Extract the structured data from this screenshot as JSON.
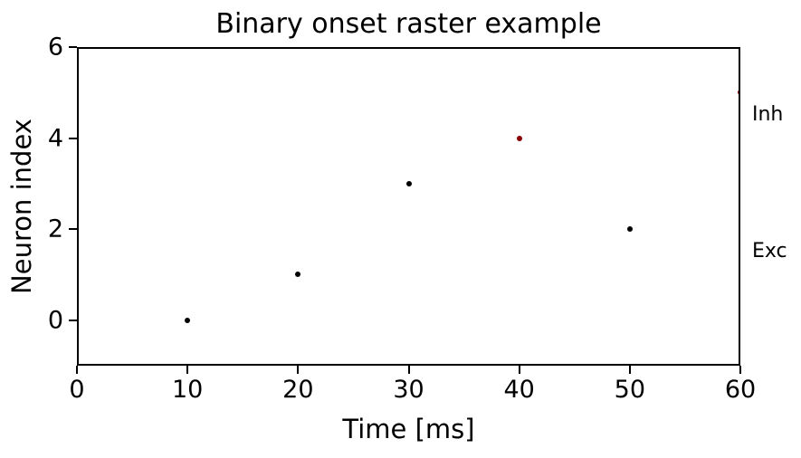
{
  "chart_data": {
    "type": "scatter",
    "title": "Binary onset raster example",
    "xlabel": "Time [ms]",
    "ylabel": "Neuron index",
    "xlim": [
      0,
      60
    ],
    "ylim": [
      -1,
      6
    ],
    "xticks": [
      0,
      10,
      20,
      30,
      40,
      50,
      60
    ],
    "yticks": [
      0,
      2,
      4,
      6
    ],
    "grid": false,
    "legend": "none",
    "marker_size_px": 6,
    "series": [
      {
        "name": "Exc",
        "key": "exc",
        "color": "#000000",
        "points": [
          {
            "x": 10,
            "y": 0
          },
          {
            "x": 20,
            "y": 1
          },
          {
            "x": 30,
            "y": 3
          },
          {
            "x": 50,
            "y": 2
          }
        ]
      },
      {
        "name": "Inh",
        "key": "inh",
        "color": "#8b0000",
        "points": [
          {
            "x": 40,
            "y": 4
          },
          {
            "x": 60,
            "y": 5
          }
        ]
      }
    ],
    "annotations": [
      {
        "label": "Inh",
        "y": 4.5
      },
      {
        "label": "Exc",
        "y": 1.5
      }
    ],
    "colors": {
      "text": "#000000",
      "spine": "#000000",
      "background": "#ffffff",
      "exc_marker": "#000000",
      "inh_marker": "#8b0000"
    }
  }
}
